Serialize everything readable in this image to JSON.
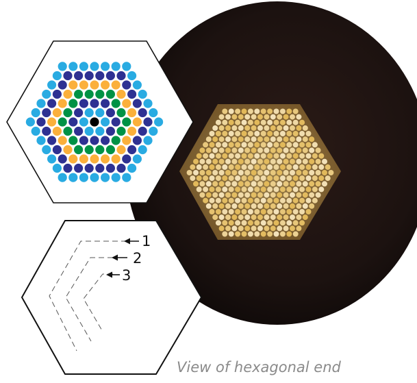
{
  "caption": "View of hexagonal end",
  "diagram_labels": [
    "1",
    "2",
    "3"
  ],
  "colors": {
    "ring_outer": "#29abe2",
    "ring_2": "#2e3192",
    "ring_3": "#fbb03b",
    "ring_4": "#009245",
    "ring_5": "#29abe2",
    "ring_6": "#c1272d",
    "center": "#000000",
    "photo_background": "#1c1210",
    "fiber_glow": "#e7c166"
  },
  "ring_palette_order": [
    "ring_outer",
    "ring_2",
    "ring_3",
    "ring_4",
    "ring_2",
    "ring_5",
    "ring_6"
  ]
}
